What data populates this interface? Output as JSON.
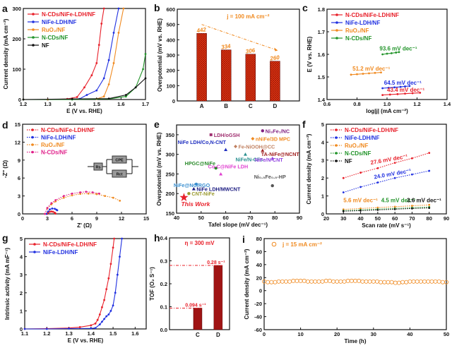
{
  "chart_data": [
    {
      "panel": "a",
      "type": "line",
      "xlabel": "E (V vs. RHE)",
      "ylabel": "Current density (mA cm⁻²)",
      "xlim": [
        1.2,
        1.7
      ],
      "ylim": [
        0,
        300
      ],
      "xticks": [
        "1.2",
        "1.3",
        "1.4",
        "1.5",
        "1.6",
        "1.7"
      ],
      "yticks": [
        "0",
        "100",
        "200",
        "300"
      ],
      "legend": "top-left",
      "series": [
        {
          "name": "N-CDs/NiFe-LDH/NF",
          "color": "#e8202a",
          "x": [
            1.2,
            1.3,
            1.38,
            1.42,
            1.45,
            1.48,
            1.5,
            1.51,
            1.52,
            1.53
          ],
          "y": [
            0,
            0,
            2,
            8,
            40,
            80,
            120,
            180,
            250,
            300
          ]
        },
        {
          "name": "NiFe-LDH/NF",
          "color": "#2030e0",
          "x": [
            1.2,
            1.3,
            1.43,
            1.46,
            1.5,
            1.53,
            1.55,
            1.57,
            1.59
          ],
          "y": [
            0,
            0,
            2,
            15,
            30,
            70,
            130,
            220,
            300
          ]
        },
        {
          "name": "RuO₂/NF",
          "color": "#f08a20",
          "x": [
            1.2,
            1.3,
            1.5,
            1.53,
            1.55,
            1.57,
            1.59,
            1.61
          ],
          "y": [
            0,
            0,
            2,
            10,
            50,
            120,
            220,
            300
          ]
        },
        {
          "name": "N-CDs/NF",
          "color": "#22942a",
          "x": [
            1.2,
            1.4,
            1.55,
            1.62,
            1.66,
            1.69,
            1.7
          ],
          "y": [
            0,
            0,
            2,
            10,
            40,
            100,
            150
          ]
        },
        {
          "name": "NF",
          "color": "#111111",
          "x": [
            1.2,
            1.4,
            1.55,
            1.62,
            1.66,
            1.7
          ],
          "y": [
            0,
            2,
            3,
            15,
            40,
            70
          ]
        }
      ]
    },
    {
      "panel": "b",
      "type": "bar",
      "xlabel": "",
      "ylabel": "Overpotential (mV vs. RHE)",
      "ylim": [
        0,
        600
      ],
      "yticks": [
        "0",
        "100",
        "200",
        "300",
        "400",
        "500",
        "600"
      ],
      "categories": [
        "A",
        "B",
        "C",
        "D"
      ],
      "values": [
        442,
        334,
        306,
        260
      ],
      "value_labels": [
        "442",
        "334",
        "306",
        "260"
      ],
      "color": "#e8301a",
      "label_color": "#f08a20",
      "annotations": [
        {
          "text": "j = 100 mA cm⁻²",
          "color": "#f08a20",
          "at": [
            1.9,
            540
          ]
        }
      ],
      "trend_arrow": {
        "from": [
          0,
          500
        ],
        "to": [
          3,
          330
        ],
        "color": "#f08a20"
      }
    },
    {
      "panel": "c",
      "type": "line",
      "xlabel": "log|j| (mA cm⁻²)",
      "ylabel": "E (V vs. RHE)",
      "xlim": [
        0.6,
        1.4
      ],
      "ylim": [
        1.4,
        1.8
      ],
      "xticks": [
        "0.6",
        "0.8",
        "1.0",
        "1.2",
        "1.4"
      ],
      "yticks": [
        "1.4",
        "1.5",
        "1.6",
        "1.7",
        "1.8"
      ],
      "legend": "top-left",
      "series": [
        {
          "name": "N-CDs/NiFe-LDH/NF",
          "color": "#e8202a",
          "x": [
            0.97,
            1.02,
            1.07,
            1.12,
            1.17,
            1.22
          ],
          "y": [
            1.42,
            1.422,
            1.424,
            1.426,
            1.428,
            1.43
          ]
        },
        {
          "name": "NiFe-LDH/NF",
          "color": "#2030e0",
          "x": [
            0.97,
            1.01,
            1.05,
            1.09,
            1.12,
            1.15
          ],
          "y": [
            1.45,
            1.452,
            1.454,
            1.456,
            1.458,
            1.46
          ]
        },
        {
          "name": "RuO₂/NF",
          "color": "#f08a20",
          "x": [
            0.76,
            0.8,
            0.84,
            0.88,
            0.92,
            0.96
          ],
          "y": [
            1.51,
            1.512,
            1.514,
            1.516,
            1.518,
            1.52
          ]
        },
        {
          "name": "N-CDs/NF",
          "color": "#22942a",
          "x": [
            0.97,
            1.0,
            1.03,
            1.06,
            1.08
          ],
          "y": [
            1.6,
            1.603,
            1.605,
            1.608,
            1.61
          ]
        }
      ],
      "annotations": [
        {
          "text": "93.6 mV dec⁻¹",
          "color": "#22942a",
          "at": [
            0.95,
            1.617
          ]
        },
        {
          "text": "51.2 mV dec⁻¹",
          "color": "#f08a20",
          "at": [
            0.77,
            1.528
          ]
        },
        {
          "text": "64.5 mV dec⁻¹",
          "color": "#2030e0",
          "at": [
            0.98,
            1.465
          ]
        },
        {
          "text": "43.4 mV dec⁻¹",
          "color": "#e8202a",
          "at": [
            1.0,
            1.434
          ]
        }
      ]
    },
    {
      "panel": "d",
      "type": "line",
      "xlabel": "Z' (Ω)",
      "ylabel": "-Z'' (Ω)",
      "xlim": [
        0,
        15
      ],
      "ylim": [
        0,
        15
      ],
      "xticks": [
        "0",
        "3",
        "6",
        "9",
        "12",
        "15"
      ],
      "yticks": [
        "0",
        "3",
        "6",
        "9",
        "12",
        "15"
      ],
      "legend": "top-left",
      "series": [
        {
          "name": "N-CDs/NiFe-LDH/NF",
          "color": "#e8202a",
          "x": [
            3.0,
            3.1,
            3.3,
            3.5,
            3.7,
            3.9,
            4.0
          ],
          "y": [
            0,
            0.2,
            0.35,
            0.4,
            0.35,
            0.2,
            0.05
          ]
        },
        {
          "name": "NiFe-LDH/NF",
          "color": "#2030e0",
          "x": [
            2.9,
            3.1,
            3.3,
            3.6,
            3.9,
            4.1,
            4.2
          ],
          "y": [
            0,
            0.4,
            0.75,
            0.9,
            0.85,
            0.7,
            0.6
          ]
        },
        {
          "name": "RuO₂/NF",
          "color": "#f08a20",
          "x": [
            2.7,
            3,
            3.5,
            4,
            5,
            6,
            7,
            8,
            9,
            10,
            11,
            11.8
          ],
          "y": [
            0,
            0.9,
            1.6,
            2.1,
            2.7,
            3.1,
            3.35,
            3.4,
            3.3,
            3.0,
            2.7,
            2.2
          ]
        },
        {
          "name": "N-CDs/NF",
          "color": "#e0208a",
          "x": [
            2.7,
            3,
            3.5,
            4,
            5,
            6,
            7,
            7.7,
            8.5,
            9.3
          ],
          "y": [
            0,
            1.0,
            1.8,
            2.3,
            3.0,
            3.4,
            3.6,
            3.7,
            3.6,
            3.4
          ]
        }
      ],
      "circuit": {
        "rs": "Rs",
        "cpe": "CPE",
        "rct": "Rct"
      }
    },
    {
      "panel": "e",
      "type": "scatter",
      "xlabel": "Tafel slope (mV dec⁻¹)",
      "ylabel": "Overpotential (mV vs. RHE)",
      "xlim": [
        40,
        90
      ],
      "ylim": [
        150,
        375
      ],
      "xticks": [
        "40",
        "50",
        "60",
        "70",
        "80",
        "90"
      ],
      "yticks": [
        "150",
        "200",
        "250",
        "300",
        "350"
      ],
      "points": [
        {
          "label": "This Work",
          "x": 43,
          "y": 190,
          "color": "#e8202a",
          "marker": "star"
        },
        {
          "label": "CNT-NiFe",
          "x": 45,
          "y": 200,
          "color": "#9a9a30",
          "marker": "circle"
        },
        {
          "label": "NiFe LDH/MWCNT",
          "x": 47,
          "y": 212,
          "color": "#1a1a80",
          "marker": "triangle"
        },
        {
          "label": "NiFe@NC/RGO",
          "x": 48,
          "y": 224,
          "color": "#3a8fd0",
          "marker": "circle"
        },
        {
          "label": "HPGC@NiFe",
          "x": 56,
          "y": 265,
          "color": "#2a8a2a",
          "marker": "circle"
        },
        {
          "label": "Co-C@NiFe LDH",
          "x": 58,
          "y": 250,
          "color": "#e040d0",
          "marker": "triangle"
        },
        {
          "label": "NiFe LDH/Co,N-CNT",
          "x": 60,
          "y": 312,
          "color": "#2030c0",
          "marker": "triangle"
        },
        {
          "label": "LDH/oGSH",
          "x": 54,
          "y": 350,
          "color": "#a03070",
          "marker": "square"
        },
        {
          "label": "Fe-NiOOH@CC",
          "x": 64,
          "y": 320,
          "color": "#c08060",
          "marker": "diamond"
        },
        {
          "label": "NiFe/N-CFs",
          "x": 68,
          "y": 300,
          "color": "#2a9090",
          "marker": "triangle"
        },
        {
          "label": "nNiFe/3D MPC",
          "x": 71,
          "y": 340,
          "color": "#f08a20",
          "marker": "diamond"
        },
        {
          "label": "Ni₃Fe₁/NC",
          "x": 75,
          "y": 360,
          "color": "#802080",
          "marker": "circle"
        },
        {
          "label": "TA-NiFe@NCNT",
          "x": 75,
          "y": 310,
          "color": "#a02020",
          "marker": "triangle"
        },
        {
          "label": "NiFe/N-CNT",
          "x": 79,
          "y": 290,
          "color": "#9040e0",
          "marker": "triangle"
        },
        {
          "label": "Ni₀.₅Fe₀.₅-HP",
          "x": 79,
          "y": 220,
          "color": "#555555",
          "marker": "circle"
        }
      ]
    },
    {
      "panel": "f",
      "type": "line",
      "xlabel": "Scan rate (mV s⁻¹)",
      "ylabel": "Current density (mA cm⁻²)",
      "xlim": [
        20,
        90
      ],
      "ylim": [
        0,
        5
      ],
      "xticks": [
        "20",
        "30",
        "40",
        "50",
        "60",
        "70",
        "80",
        "90"
      ],
      "yticks": [
        "0",
        "1",
        "2",
        "3",
        "4",
        "5"
      ],
      "legend": "top-left",
      "series": [
        {
          "name": "N-CDs/NiFe-LDH/NF",
          "color": "#e8202a",
          "x": [
            30,
            40,
            50,
            60,
            70,
            80
          ],
          "y": [
            2.0,
            2.3,
            2.55,
            2.85,
            3.1,
            3.4
          ]
        },
        {
          "name": "NiFe-LDH/NF",
          "color": "#2030e0",
          "x": [
            30,
            40,
            50,
            60,
            70,
            80
          ],
          "y": [
            1.2,
            1.5,
            1.75,
            2.0,
            2.2,
            2.4
          ]
        },
        {
          "name": "RuO₂/NF",
          "color": "#f08a20",
          "x": [
            30,
            40,
            50,
            60,
            70,
            80
          ],
          "y": [
            0.25,
            0.3,
            0.35,
            0.4,
            0.45,
            0.5
          ]
        },
        {
          "name": "N-CDs/NF",
          "color": "#22942a",
          "x": [
            30,
            40,
            50,
            60,
            70,
            80
          ],
          "y": [
            0.18,
            0.22,
            0.26,
            0.3,
            0.34,
            0.38
          ]
        },
        {
          "name": "NF",
          "color": "#111111",
          "x": [
            30,
            40,
            50,
            60,
            70,
            80
          ],
          "y": [
            0.15,
            0.18,
            0.22,
            0.26,
            0.3,
            0.33
          ]
        }
      ],
      "annotations": [
        {
          "text": "27.6 mV dec⁻¹",
          "color": "#e8202a",
          "at": [
            46,
            2.75
          ]
        },
        {
          "text": "24.0 mV dec⁻¹",
          "color": "#2030e0",
          "at": [
            48,
            1.95
          ]
        },
        {
          "text": "5.6 mV dec⁻¹",
          "color": "#f08a20",
          "at": [
            30,
            0.65
          ]
        },
        {
          "text": "4.5 mV dec⁻¹",
          "color": "#22942a",
          "at": [
            52,
            0.65
          ]
        },
        {
          "text": "3.6 mV dec⁻¹",
          "color": "#111111",
          "at": [
            67,
            0.65
          ]
        }
      ]
    },
    {
      "panel": "g",
      "type": "line",
      "xlabel": "E (V vs. RHE)",
      "ylabel": "Intrinsic activity (mA mF⁻¹)",
      "xlim": [
        1.1,
        1.65
      ],
      "ylim": [
        0,
        5
      ],
      "xticks": [
        "1.1",
        "1.2",
        "1.3",
        "1.4",
        "1.5",
        "1.6"
      ],
      "yticks": [
        "0",
        "1",
        "2",
        "3",
        "4",
        "5"
      ],
      "legend": "top-left",
      "series": [
        {
          "name": "N-CDs/NiFe-LDH/NF",
          "color": "#e8202a",
          "x": [
            1.1,
            1.2,
            1.3,
            1.35,
            1.4,
            1.42,
            1.43,
            1.44,
            1.45,
            1.46,
            1.47,
            1.48,
            1.49,
            1.5,
            1.505
          ],
          "y": [
            0,
            0.02,
            0.05,
            0.1,
            0.2,
            0.3,
            0.5,
            0.8,
            1.2,
            1.6,
            2.2,
            2.8,
            3.6,
            4.5,
            5
          ]
        },
        {
          "name": "NiFe-LDH/NF",
          "color": "#2030e0",
          "x": [
            1.1,
            1.2,
            1.3,
            1.4,
            1.42,
            1.44,
            1.45,
            1.46,
            1.47,
            1.48,
            1.49,
            1.5,
            1.51,
            1.52,
            1.53,
            1.54
          ],
          "y": [
            0,
            0,
            0.02,
            0.03,
            0.05,
            0.25,
            0.4,
            0.55,
            0.7,
            0.8,
            1.0,
            1.3,
            2.0,
            3.0,
            4.0,
            5.0
          ]
        }
      ]
    },
    {
      "panel": "h",
      "type": "bar",
      "xlabel": "",
      "ylabel": "TOF (O₂ S⁻¹)",
      "ylim": [
        0,
        0.4
      ],
      "yticks": [
        "0.0",
        "0.1",
        "0.2",
        "0.3",
        "0.4"
      ],
      "categories": [
        "C",
        "D"
      ],
      "values": [
        0.094,
        0.28
      ],
      "value_labels": [
        "0.094 s⁻¹",
        "0.28 s⁻¹"
      ],
      "color": "#b01818",
      "label_color": "#e8202a",
      "reference_lines": true,
      "annotations": [
        {
          "text": "η = 300 mV",
          "color": "#e8202a",
          "at": [
            0.5,
            0.37
          ]
        }
      ]
    },
    {
      "panel": "i",
      "type": "scatter-series",
      "xlabel": "Time (h)",
      "ylabel": "Current density (mA cm⁻²)",
      "xlim": [
        0,
        50
      ],
      "ylim": [
        -60,
        80
      ],
      "xticks": [
        "0",
        "10",
        "20",
        "30",
        "40",
        "50"
      ],
      "yticks": [
        "-60",
        "-40",
        "-20",
        "0",
        "20",
        "40",
        "60",
        "80"
      ],
      "legend": "top-left",
      "series": [
        {
          "name": "j = 15 mA cm⁻²",
          "color": "#f08a20",
          "x": [
            0,
            1,
            2,
            3,
            4,
            5,
            6,
            7,
            8,
            9,
            10,
            11,
            12,
            13,
            14,
            15,
            16,
            17,
            18,
            19,
            20,
            21,
            22,
            23,
            24,
            25,
            26,
            27,
            28,
            29,
            30,
            31,
            32,
            33,
            34,
            35,
            36,
            37,
            38,
            39,
            40,
            41,
            42,
            43,
            44,
            45,
            46,
            47,
            48,
            49,
            50
          ],
          "y": [
            14,
            13,
            13,
            13,
            14,
            14,
            14,
            14,
            15,
            15,
            15,
            15,
            14,
            14,
            14,
            14,
            14,
            15,
            15,
            14,
            14,
            14,
            14,
            15,
            15,
            15,
            15,
            14,
            14,
            14,
            14,
            14,
            13,
            13,
            13,
            13,
            12,
            12,
            13,
            13,
            14,
            14,
            14,
            14,
            14,
            14,
            14,
            14,
            14,
            13,
            13
          ]
        }
      ]
    }
  ]
}
